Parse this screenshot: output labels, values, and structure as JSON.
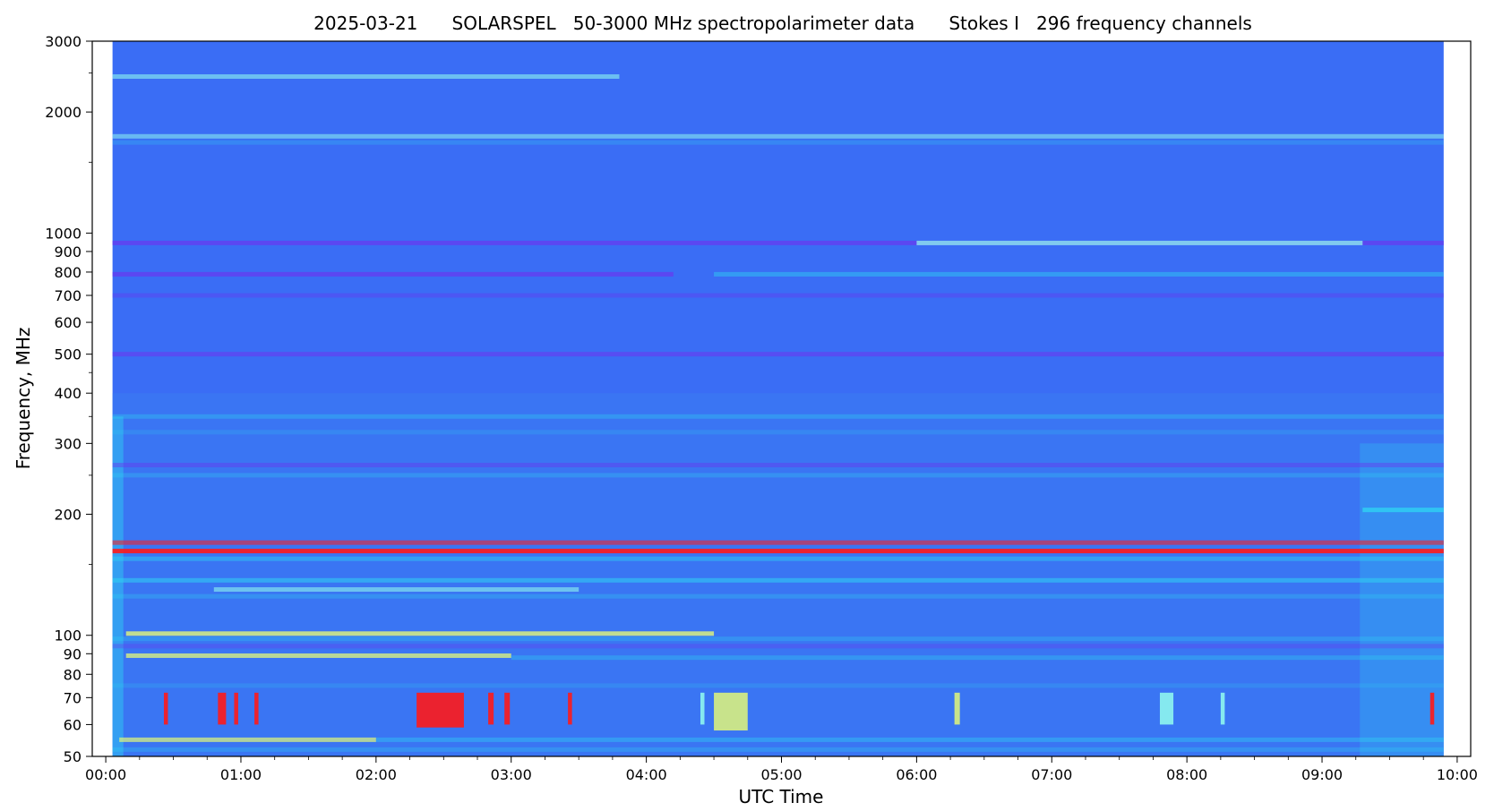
{
  "chart_data": {
    "type": "heatmap",
    "title": "2025-03-21      SOLARSPEL   50-3000 MHz spectropolarimeter data      Stokes I   296 frequency channels",
    "xlabel": "UTC Time",
    "ylabel": "Frequency, MHz",
    "yscale": "log",
    "ylim": [
      50,
      3000
    ],
    "xlim_hours": [
      -0.1,
      10.1
    ],
    "data_span_hours": [
      0.05,
      9.9
    ],
    "x_ticks": [
      {
        "h": 0,
        "label": "00:00"
      },
      {
        "h": 1,
        "label": "01:00"
      },
      {
        "h": 2,
        "label": "02:00"
      },
      {
        "h": 3,
        "label": "03:00"
      },
      {
        "h": 4,
        "label": "04:00"
      },
      {
        "h": 5,
        "label": "05:00"
      },
      {
        "h": 6,
        "label": "06:00"
      },
      {
        "h": 7,
        "label": "07:00"
      },
      {
        "h": 8,
        "label": "08:00"
      },
      {
        "h": 9,
        "label": "09:00"
      },
      {
        "h": 10,
        "label": "10:00"
      }
    ],
    "y_ticks": [
      {
        "v": 50,
        "label": "50"
      },
      {
        "v": 60,
        "label": "60"
      },
      {
        "v": 70,
        "label": "70"
      },
      {
        "v": 80,
        "label": "80"
      },
      {
        "v": 90,
        "label": "90"
      },
      {
        "v": 100,
        "label": "100"
      },
      {
        "v": 200,
        "label": "200"
      },
      {
        "v": 300,
        "label": "300"
      },
      {
        "v": 400,
        "label": "400"
      },
      {
        "v": 500,
        "label": "500"
      },
      {
        "v": 600,
        "label": "600"
      },
      {
        "v": 700,
        "label": "700"
      },
      {
        "v": 800,
        "label": "800"
      },
      {
        "v": 900,
        "label": "900"
      },
      {
        "v": 1000,
        "label": "1000"
      },
      {
        "v": 2000,
        "label": "2000"
      },
      {
        "v": 3000,
        "label": "3000"
      }
    ],
    "y_minor_ticks": [
      150,
      250,
      350,
      450,
      1500,
      2500
    ],
    "grid": false,
    "colormap": "jet",
    "colors": {
      "background": "#3a6df5",
      "low_band": "#3a7cf0",
      "cyan": "#2fd2f2",
      "light_cyan": "#8ef6ee",
      "purple": "#6a38f0",
      "red": "#ff1a1a",
      "yellow": "#d8f080"
    },
    "bands": [
      {
        "f": 2450,
        "start": 0.05,
        "end": 3.8,
        "color": "light_cyan",
        "strength": 0.6
      },
      {
        "f": 1740,
        "start": 0.05,
        "end": 9.9,
        "color": "light_cyan",
        "strength": 0.55
      },
      {
        "f": 1680,
        "start": 0.05,
        "end": 9.9,
        "color": "cyan",
        "strength": 0.25
      },
      {
        "f": 945,
        "start": 0.05,
        "end": 9.9,
        "color": "purple",
        "strength": 0.7
      },
      {
        "f": 945,
        "start": 6.0,
        "end": 9.3,
        "color": "light_cyan",
        "strength": 0.75
      },
      {
        "f": 790,
        "start": 0.05,
        "end": 4.2,
        "color": "purple",
        "strength": 0.7
      },
      {
        "f": 790,
        "start": 4.5,
        "end": 9.9,
        "color": "cyan",
        "strength": 0.45
      },
      {
        "f": 700,
        "start": 0.05,
        "end": 9.9,
        "color": "purple",
        "strength": 0.4
      },
      {
        "f": 500,
        "start": 0.05,
        "end": 9.9,
        "color": "purple",
        "strength": 0.6
      },
      {
        "f": 350,
        "start": 0.05,
        "end": 9.9,
        "color": "cyan",
        "strength": 0.35
      },
      {
        "f": 320,
        "start": 0.05,
        "end": 9.9,
        "color": "cyan",
        "strength": 0.2
      },
      {
        "f": 265,
        "start": 0.05,
        "end": 9.9,
        "color": "purple",
        "strength": 0.45
      },
      {
        "f": 250,
        "start": 0.05,
        "end": 9.9,
        "color": "cyan",
        "strength": 0.3
      },
      {
        "f": 205,
        "start": 9.3,
        "end": 9.9,
        "color": "cyan",
        "strength": 0.8
      },
      {
        "f": 170,
        "start": 0.05,
        "end": 9.9,
        "color": "red",
        "strength": 0.55
      },
      {
        "f": 162,
        "start": 0.05,
        "end": 9.9,
        "color": "red",
        "strength": 0.9
      },
      {
        "f": 155,
        "start": 0.05,
        "end": 9.9,
        "color": "cyan",
        "strength": 0.45
      },
      {
        "f": 137,
        "start": 0.05,
        "end": 9.9,
        "color": "cyan",
        "strength": 0.55
      },
      {
        "f": 130,
        "start": 0.8,
        "end": 3.5,
        "color": "light_cyan",
        "strength": 0.6
      },
      {
        "f": 125,
        "start": 0.05,
        "end": 9.9,
        "color": "cyan",
        "strength": 0.3
      },
      {
        "f": 101,
        "start": 0.15,
        "end": 4.5,
        "color": "yellow",
        "strength": 0.85
      },
      {
        "f": 98,
        "start": 0.05,
        "end": 9.9,
        "color": "cyan",
        "strength": 0.3
      },
      {
        "f": 94,
        "start": 0.05,
        "end": 9.9,
        "color": "purple",
        "strength": 0.35
      },
      {
        "f": 89,
        "start": 0.15,
        "end": 3.0,
        "color": "yellow",
        "strength": 0.8
      },
      {
        "f": 88,
        "start": 3.0,
        "end": 9.9,
        "color": "cyan",
        "strength": 0.35
      },
      {
        "f": 75,
        "start": 0.05,
        "end": 9.9,
        "color": "cyan",
        "strength": 0.2
      },
      {
        "f": 55,
        "start": 0.1,
        "end": 2.0,
        "color": "yellow",
        "strength": 0.75
      },
      {
        "f": 55,
        "start": 2.0,
        "end": 9.9,
        "color": "cyan",
        "strength": 0.4
      },
      {
        "f": 52,
        "start": 0.05,
        "end": 9.9,
        "color": "cyan",
        "strength": 0.3
      }
    ],
    "bursts": [
      {
        "t": 0.43,
        "dt": 0.03,
        "f1": 60,
        "f2": 72,
        "color": "red"
      },
      {
        "t": 0.83,
        "dt": 0.06,
        "f1": 60,
        "f2": 72,
        "color": "red"
      },
      {
        "t": 0.95,
        "dt": 0.03,
        "f1": 60,
        "f2": 72,
        "color": "red"
      },
      {
        "t": 1.1,
        "dt": 0.03,
        "f1": 60,
        "f2": 72,
        "color": "red"
      },
      {
        "t": 2.3,
        "dt": 0.35,
        "f1": 59,
        "f2": 72,
        "color": "red"
      },
      {
        "t": 2.83,
        "dt": 0.04,
        "f1": 60,
        "f2": 72,
        "color": "red"
      },
      {
        "t": 2.95,
        "dt": 0.04,
        "f1": 60,
        "f2": 72,
        "color": "red"
      },
      {
        "t": 3.42,
        "dt": 0.03,
        "f1": 60,
        "f2": 72,
        "color": "red"
      },
      {
        "t": 4.4,
        "dt": 0.03,
        "f1": 60,
        "f2": 72,
        "color": "light_cyan"
      },
      {
        "t": 4.5,
        "dt": 0.25,
        "f1": 58,
        "f2": 72,
        "color": "yellow"
      },
      {
        "t": 6.28,
        "dt": 0.04,
        "f1": 60,
        "f2": 72,
        "color": "yellow"
      },
      {
        "t": 7.8,
        "dt": 0.1,
        "f1": 60,
        "f2": 72,
        "color": "light_cyan"
      },
      {
        "t": 8.25,
        "dt": 0.03,
        "f1": 60,
        "f2": 72,
        "color": "light_cyan"
      },
      {
        "t": 9.8,
        "dt": 0.03,
        "f1": 60,
        "f2": 72,
        "color": "red"
      }
    ],
    "left_edge_activity": {
      "t": 0.05,
      "dt": 0.08,
      "f1": 50,
      "f2": 350,
      "color": "cyan"
    },
    "late_shift_region": {
      "t": 9.28,
      "dt": 0.62,
      "f1": 50,
      "f2": 300,
      "color": "cyan"
    }
  }
}
